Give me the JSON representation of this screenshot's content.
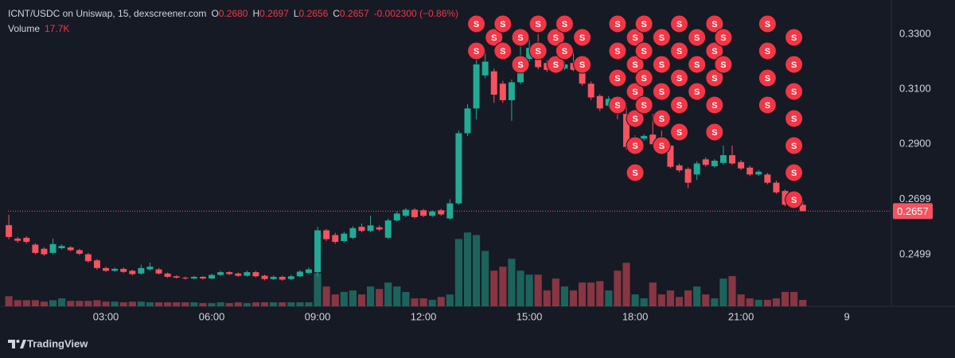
{
  "chart_data": {
    "type": "candlestick",
    "header": {
      "symbol": "ICNT/USDC on Uniswap, 15, dexscreener.com",
      "ohlc": [
        {
          "label": "O",
          "value": "0.2680"
        },
        {
          "label": "H",
          "value": "0.2697"
        },
        {
          "label": "L",
          "value": "0.2656"
        },
        {
          "label": "C",
          "value": "0.2657"
        }
      ],
      "change": "-0.002300 (−0.86%)",
      "volume_label": "Volume",
      "volume_value": "17.7K"
    },
    "x": [
      0.25,
      0.5,
      0.75,
      1,
      1.25,
      1.5,
      1.75,
      2,
      2.25,
      2.5,
      2.75,
      3,
      3.25,
      3.5,
      3.75,
      4,
      4.25,
      4.5,
      4.75,
      5,
      5.25,
      5.5,
      5.75,
      6,
      6.25,
      6.5,
      6.75,
      7,
      7.25,
      7.5,
      7.75,
      8,
      8.25,
      8.5,
      8.75,
      9,
      9.25,
      9.5,
      9.75,
      10,
      10.25,
      10.5,
      10.75,
      11,
      11.25,
      11.5,
      11.75,
      12,
      12.25,
      12.5,
      12.75,
      13,
      13.25,
      13.5,
      13.75,
      14,
      14.25,
      14.5,
      14.75,
      15,
      15.25,
      15.5,
      15.75,
      16,
      16.25,
      16.5,
      16.75,
      17,
      17.25,
      17.5,
      17.75,
      18,
      18.25,
      18.5,
      18.75,
      19,
      19.25,
      19.5,
      19.75,
      20,
      20.25,
      20.5,
      20.75,
      21,
      21.25,
      21.5,
      21.75,
      22,
      22.25,
      22.5,
      22.75
    ],
    "open": [
      0.2606,
      0.2557,
      0.256,
      0.2535,
      0.252,
      0.2505,
      0.2522,
      0.2525,
      0.2515,
      0.25,
      0.2478,
      0.245,
      0.244,
      0.2447,
      0.244,
      0.243,
      0.2445,
      0.2445,
      0.243,
      0.242,
      0.2415,
      0.2412,
      0.2418,
      0.2412,
      0.2425,
      0.2435,
      0.243,
      0.2422,
      0.2435,
      0.2422,
      0.241,
      0.2418,
      0.241,
      0.242,
      0.2432,
      0.2435,
      0.2587,
      0.257,
      0.2548,
      0.256,
      0.26,
      0.2585,
      0.2598,
      0.256,
      0.2623,
      0.264,
      0.2662,
      0.266,
      0.264,
      0.266,
      0.263,
      0.2685,
      0.294,
      0.303,
      0.315,
      0.3165,
      0.312,
      0.306,
      0.3125,
      0.321,
      0.325,
      0.3195,
      0.3185,
      0.3175,
      0.3195,
      0.317,
      0.312,
      0.3075,
      0.304,
      0.3065,
      0.301,
      0.289,
      0.292,
      0.2935,
      0.291,
      0.2895,
      0.2823,
      0.281,
      0.279,
      0.2845,
      0.282,
      0.2832,
      0.286,
      0.2835,
      0.2815,
      0.279,
      0.279,
      0.276,
      0.273,
      0.269,
      0.268
    ],
    "high": [
      0.2644,
      0.2563,
      0.2566,
      0.254,
      0.2526,
      0.2557,
      0.2536,
      0.253,
      0.252,
      0.2505,
      0.2483,
      0.2455,
      0.2452,
      0.2452,
      0.2444,
      0.2462,
      0.247,
      0.245,
      0.2434,
      0.2424,
      0.2419,
      0.2422,
      0.2421,
      0.2429,
      0.244,
      0.2439,
      0.2434,
      0.2441,
      0.244,
      0.2426,
      0.2423,
      0.2422,
      0.2425,
      0.2442,
      0.2452,
      0.26,
      0.2592,
      0.2578,
      0.2582,
      0.2602,
      0.2612,
      0.264,
      0.2605,
      0.263,
      0.2655,
      0.2668,
      0.2668,
      0.2665,
      0.266,
      0.2665,
      0.27,
      0.295,
      0.3045,
      0.3225,
      0.324,
      0.3175,
      0.313,
      0.3135,
      0.326,
      0.328,
      0.33,
      0.3205,
      0.3192,
      0.32,
      0.324,
      0.3178,
      0.3128,
      0.3082,
      0.3075,
      0.3072,
      0.305,
      0.2932,
      0.2936,
      0.301,
      0.295,
      0.2902,
      0.283,
      0.2816,
      0.2838,
      0.2852,
      0.2846,
      0.2895,
      0.2895,
      0.2842,
      0.2822,
      0.2806,
      0.2796,
      0.2768,
      0.2736,
      0.2699,
      0.2697
    ],
    "low": [
      0.2555,
      0.2542,
      0.2538,
      0.25,
      0.2494,
      0.25,
      0.2517,
      0.251,
      0.2497,
      0.247,
      0.2444,
      0.2436,
      0.2436,
      0.2432,
      0.2423,
      0.2426,
      0.244,
      0.2426,
      0.2414,
      0.2411,
      0.2408,
      0.2409,
      0.2408,
      0.2409,
      0.2421,
      0.2424,
      0.2418,
      0.2419,
      0.2416,
      0.2405,
      0.2406,
      0.2404,
      0.2406,
      0.2416,
      0.2428,
      0.242,
      0.2548,
      0.2538,
      0.2542,
      0.2555,
      0.258,
      0.258,
      0.2584,
      0.2555,
      0.2618,
      0.2635,
      0.263,
      0.2635,
      0.2636,
      0.264,
      0.2625,
      0.268,
      0.293,
      0.299,
      0.314,
      0.305,
      0.305,
      0.2985,
      0.3118,
      0.32,
      0.3172,
      0.3162,
      0.3168,
      0.317,
      0.3165,
      0.3112,
      0.306,
      0.302,
      0.3035,
      0.299,
      0.288,
      0.2885,
      0.2912,
      0.2895,
      0.2884,
      0.2812,
      0.2798,
      0.274,
      0.277,
      0.2818,
      0.2815,
      0.2826,
      0.2825,
      0.2806,
      0.2784,
      0.2785,
      0.2754,
      0.272,
      0.2675,
      0.2674,
      0.2656
    ],
    "close": [
      0.2563,
      0.2549,
      0.2545,
      0.2505,
      0.25,
      0.2537,
      0.253,
      0.2515,
      0.2502,
      0.2475,
      0.245,
      0.244,
      0.2447,
      0.2436,
      0.2428,
      0.245,
      0.2455,
      0.243,
      0.2418,
      0.2415,
      0.2412,
      0.2418,
      0.2412,
      0.2425,
      0.2435,
      0.2428,
      0.2422,
      0.2435,
      0.242,
      0.241,
      0.2418,
      0.2408,
      0.242,
      0.2437,
      0.2445,
      0.2587,
      0.2555,
      0.2545,
      0.2575,
      0.2595,
      0.2585,
      0.2605,
      0.259,
      0.2623,
      0.2648,
      0.2662,
      0.2635,
      0.264,
      0.2655,
      0.2645,
      0.2685,
      0.294,
      0.303,
      0.319,
      0.32,
      0.308,
      0.306,
      0.3125,
      0.321,
      0.325,
      0.318,
      0.317,
      0.3175,
      0.319,
      0.317,
      0.312,
      0.307,
      0.303,
      0.3065,
      0.301,
      0.289,
      0.2925,
      0.293,
      0.29,
      0.289,
      0.2818,
      0.2805,
      0.276,
      0.283,
      0.2825,
      0.284,
      0.286,
      0.283,
      0.2812,
      0.279,
      0.28,
      0.276,
      0.2725,
      0.268,
      0.268,
      0.2657
    ],
    "volume": [
      28000,
      17000,
      17000,
      17000,
      13000,
      17000,
      22000,
      15000,
      15000,
      15000,
      17000,
      13000,
      13000,
      11000,
      13000,
      13000,
      11000,
      11000,
      11000,
      11000,
      11000,
      11000,
      9000,
      9000,
      11000,
      9000,
      11000,
      9000,
      11000,
      11000,
      11000,
      11000,
      11000,
      11000,
      11000,
      92000,
      55000,
      33000,
      40000,
      44000,
      33000,
      55000,
      48000,
      66000,
      55000,
      40000,
      22000,
      22000,
      18000,
      26000,
      33000,
      187000,
      205000,
      198000,
      154000,
      99000,
      110000,
      132000,
      99000,
      88000,
      88000,
      44000,
      77000,
      55000,
      44000,
      66000,
      66000,
      70000,
      44000,
      99000,
      121000,
      33000,
      22000,
      66000,
      33000,
      44000,
      26000,
      44000,
      55000,
      33000,
      22000,
      77000,
      84000,
      33000,
      22000,
      18000,
      18000,
      22000,
      40000,
      40000,
      17700
    ],
    "up_color": "#22ab94",
    "down_color": "#f7525f",
    "xlim": [
      0.225,
      25.26
    ],
    "ylim": [
      0.2311,
      0.3424
    ],
    "volume_lim": [
      0,
      210000
    ],
    "xticks": [
      {
        "value": 3,
        "label": "03:00"
      },
      {
        "value": 6,
        "label": "06:00"
      },
      {
        "value": 9,
        "label": "09:00"
      },
      {
        "value": 12,
        "label": "12:00"
      },
      {
        "value": 15,
        "label": "15:00"
      },
      {
        "value": 18,
        "label": "18:00"
      },
      {
        "value": 21,
        "label": "21:00"
      },
      {
        "value": 24,
        "label": "9"
      }
    ],
    "yticks": [
      0.2499,
      0.2699,
      {
        "value": 0.29,
        "label": "0.2900"
      },
      {
        "value": 0.31,
        "label": "0.3100"
      },
      {
        "value": 0.33,
        "label": "0.3300"
      }
    ],
    "grid": false,
    "last_price": {
      "value": 0.2657,
      "label": "0.2657"
    },
    "marker_label": "S",
    "marker_color": "#f23645",
    "sell_markers": [
      {
        "x": 13.5,
        "count": 2
      },
      {
        "x": 14.0,
        "count": 1
      },
      {
        "x": 14.25,
        "count": 2
      },
      {
        "x": 14.75,
        "count": 2
      },
      {
        "x": 15.25,
        "count": 2
      },
      {
        "x": 15.75,
        "count": 2
      },
      {
        "x": 16.0,
        "count": 2
      },
      {
        "x": 16.5,
        "count": 2
      },
      {
        "x": 17.5,
        "count": 4
      },
      {
        "x": 18.0,
        "count": 6
      },
      {
        "x": 18.25,
        "count": 4
      },
      {
        "x": 18.75,
        "count": 5
      },
      {
        "x": 19.25,
        "count": 5
      },
      {
        "x": 19.75,
        "count": 3
      },
      {
        "x": 20.25,
        "count": 5
      },
      {
        "x": 20.5,
        "count": 2
      },
      {
        "x": 21.75,
        "count": 4
      },
      {
        "x": 22.5,
        "count": 7
      }
    ],
    "brand": "TradingView"
  }
}
